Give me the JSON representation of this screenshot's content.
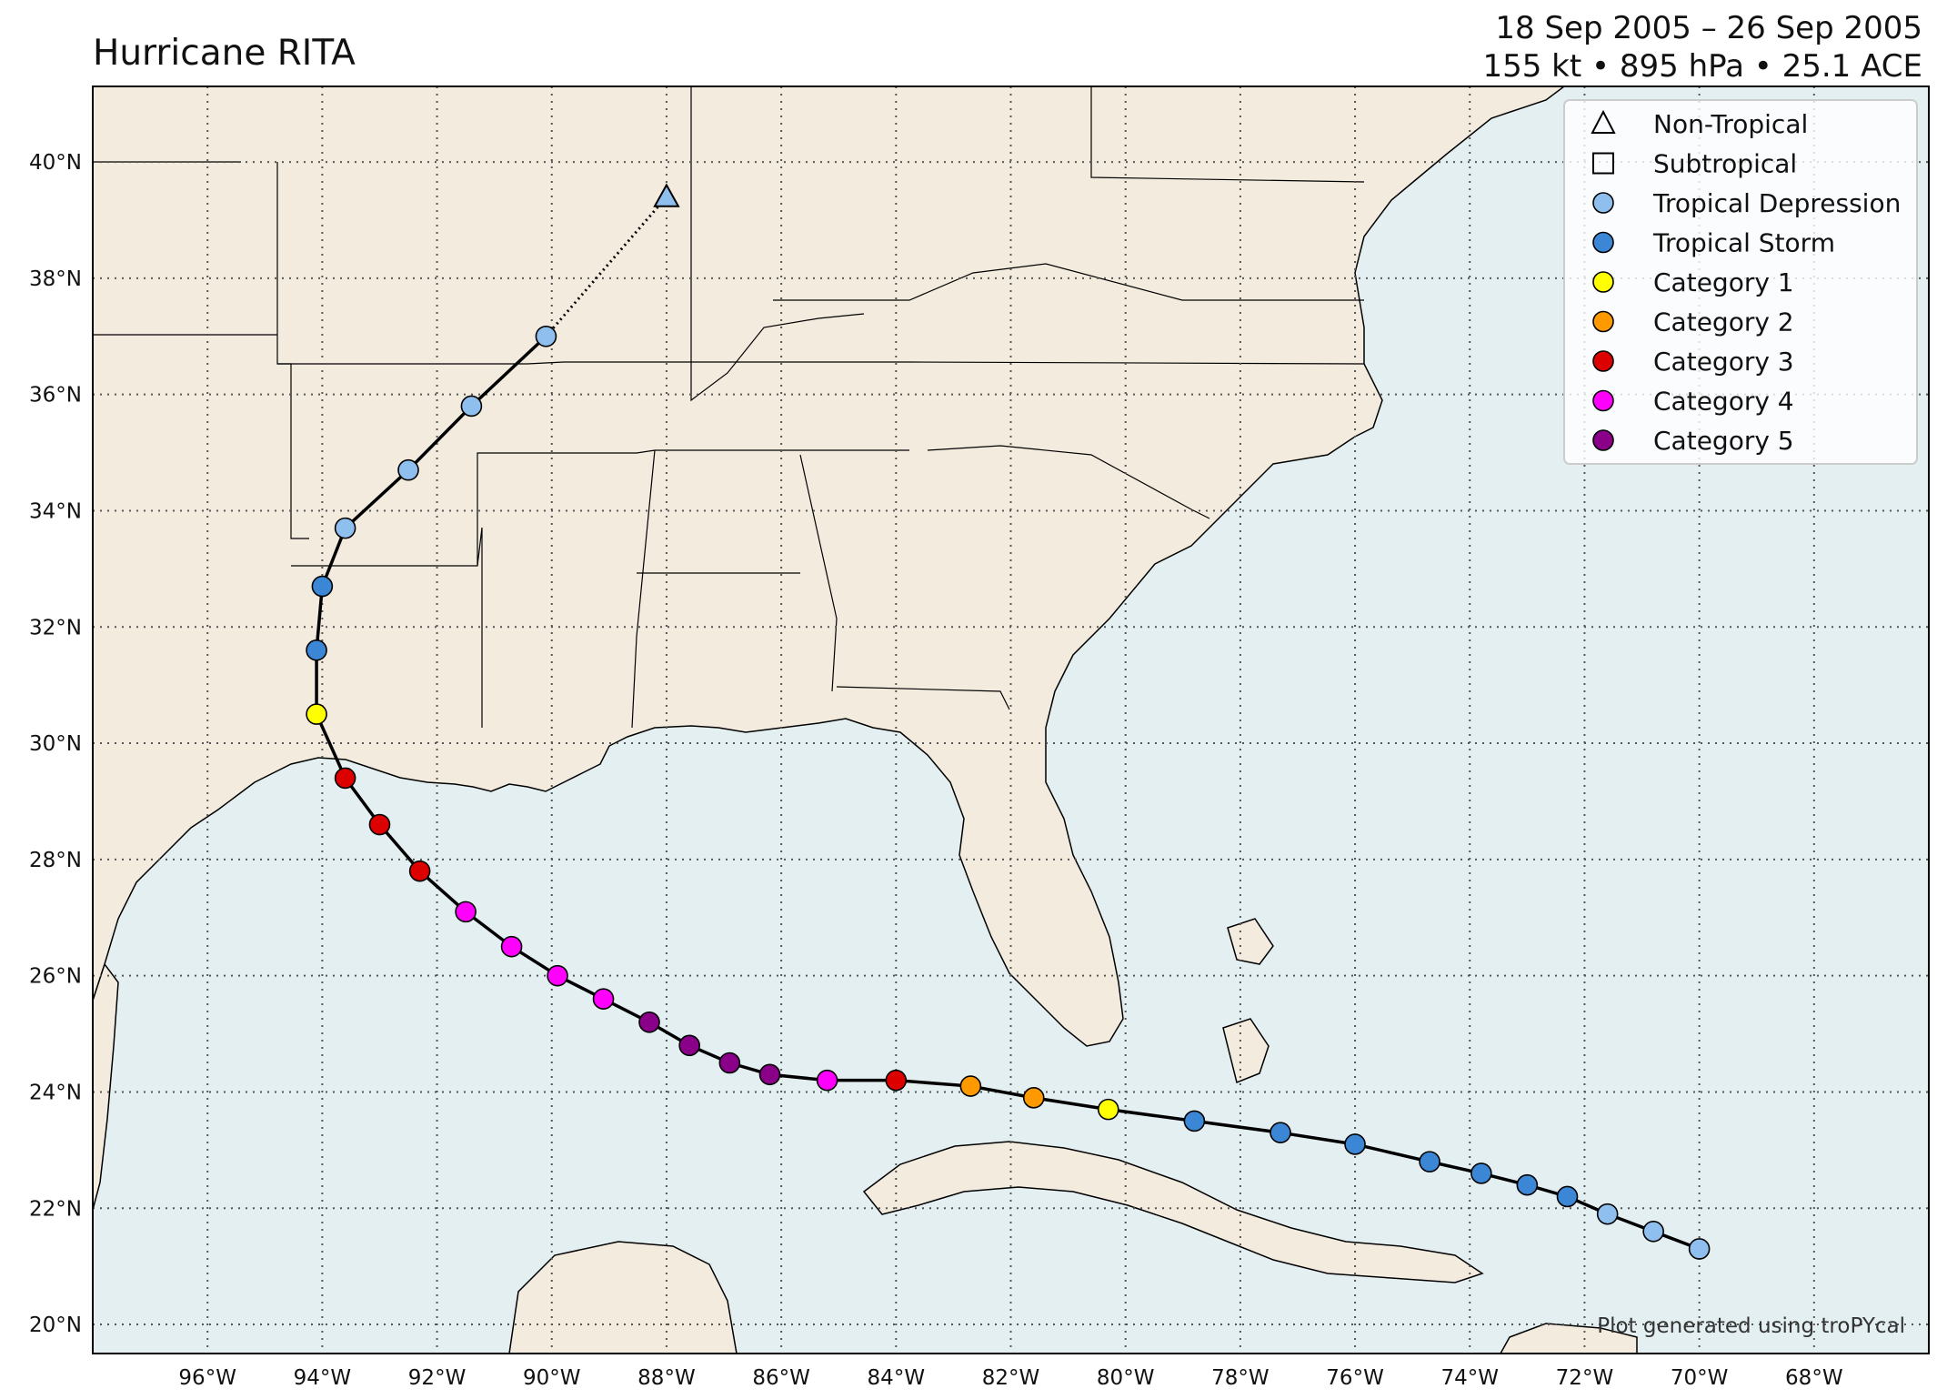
{
  "title": {
    "left": "Hurricane RITA",
    "date_range": "18 Sep 2005 – 26 Sep 2005",
    "stats": "155 kt • 895 hPa • 25.1 ACE"
  },
  "credit": "Plot generated using troPYcal",
  "map": {
    "lon_range": [
      -98,
      -66
    ],
    "lat_range": [
      19.5,
      41.3
    ],
    "lon_ticks": [
      -96,
      -94,
      -92,
      -90,
      -88,
      -86,
      -84,
      -82,
      -80,
      -78,
      -76,
      -74,
      -72,
      -70,
      -68
    ],
    "lon_tick_labels": [
      "96°W",
      "94°W",
      "92°W",
      "90°W",
      "88°W",
      "86°W",
      "84°W",
      "82°W",
      "80°W",
      "78°W",
      "76°W",
      "74°W",
      "72°W",
      "70°W",
      "68°W"
    ],
    "lat_ticks": [
      20,
      22,
      24,
      26,
      28,
      30,
      32,
      34,
      36,
      38,
      40
    ],
    "lat_tick_labels": [
      "20°N",
      "22°N",
      "24°N",
      "26°N",
      "28°N",
      "30°N",
      "32°N",
      "34°N",
      "36°N",
      "38°N",
      "40°N"
    ],
    "colors": {
      "land": "#f3ebde",
      "ocean": "#e4eff2",
      "border": "#000000",
      "grid": "#555555",
      "track": "#000000"
    }
  },
  "legend": {
    "placement": "top-right",
    "items": [
      {
        "label": "Non-Tropical",
        "shape": "triangle",
        "color": "none"
      },
      {
        "label": "Subtropical",
        "shape": "square",
        "color": "none"
      },
      {
        "label": "Tropical Depression",
        "shape": "circle",
        "color": "#8fbfee"
      },
      {
        "label": "Tropical Storm",
        "shape": "circle",
        "color": "#3b87d6"
      },
      {
        "label": "Category 1",
        "shape": "circle",
        "color": "#ffff00"
      },
      {
        "label": "Category 2",
        "shape": "circle",
        "color": "#ff9900"
      },
      {
        "label": "Category 3",
        "shape": "circle",
        "color": "#dd0000"
      },
      {
        "label": "Category 4",
        "shape": "circle",
        "color": "#ff00fc"
      },
      {
        "label": "Category 5",
        "shape": "circle",
        "color": "#8b0088"
      }
    ]
  },
  "track": [
    {
      "lon": -70.0,
      "lat": 21.3,
      "cat": "Tropical Depression"
    },
    {
      "lon": -70.8,
      "lat": 21.6,
      "cat": "Tropical Depression"
    },
    {
      "lon": -71.6,
      "lat": 21.9,
      "cat": "Tropical Depression"
    },
    {
      "lon": -72.3,
      "lat": 22.2,
      "cat": "Tropical Storm"
    },
    {
      "lon": -73.0,
      "lat": 22.4,
      "cat": "Tropical Storm"
    },
    {
      "lon": -73.8,
      "lat": 22.6,
      "cat": "Tropical Storm"
    },
    {
      "lon": -74.7,
      "lat": 22.8,
      "cat": "Tropical Storm"
    },
    {
      "lon": -76.0,
      "lat": 23.1,
      "cat": "Tropical Storm"
    },
    {
      "lon": -77.3,
      "lat": 23.3,
      "cat": "Tropical Storm"
    },
    {
      "lon": -78.8,
      "lat": 23.5,
      "cat": "Tropical Storm"
    },
    {
      "lon": -80.3,
      "lat": 23.7,
      "cat": "Category 1"
    },
    {
      "lon": -81.6,
      "lat": 23.9,
      "cat": "Category 2"
    },
    {
      "lon": -82.7,
      "lat": 24.1,
      "cat": "Category 2"
    },
    {
      "lon": -84.0,
      "lat": 24.2,
      "cat": "Category 3"
    },
    {
      "lon": -85.2,
      "lat": 24.2,
      "cat": "Category 4"
    },
    {
      "lon": -86.2,
      "lat": 24.3,
      "cat": "Category 5"
    },
    {
      "lon": -86.9,
      "lat": 24.5,
      "cat": "Category 5"
    },
    {
      "lon": -87.6,
      "lat": 24.8,
      "cat": "Category 5"
    },
    {
      "lon": -88.3,
      "lat": 25.2,
      "cat": "Category 5"
    },
    {
      "lon": -89.1,
      "lat": 25.6,
      "cat": "Category 4"
    },
    {
      "lon": -89.9,
      "lat": 26.0,
      "cat": "Category 4"
    },
    {
      "lon": -90.7,
      "lat": 26.5,
      "cat": "Category 4"
    },
    {
      "lon": -91.5,
      "lat": 27.1,
      "cat": "Category 4"
    },
    {
      "lon": -92.3,
      "lat": 27.8,
      "cat": "Category 3"
    },
    {
      "lon": -93.0,
      "lat": 28.6,
      "cat": "Category 3"
    },
    {
      "lon": -93.6,
      "lat": 29.4,
      "cat": "Category 3"
    },
    {
      "lon": -94.1,
      "lat": 30.5,
      "cat": "Category 1"
    },
    {
      "lon": -94.1,
      "lat": 31.6,
      "cat": "Tropical Storm"
    },
    {
      "lon": -94.0,
      "lat": 32.7,
      "cat": "Tropical Storm"
    },
    {
      "lon": -93.6,
      "lat": 33.7,
      "cat": "Tropical Depression"
    },
    {
      "lon": -92.5,
      "lat": 34.7,
      "cat": "Tropical Depression"
    },
    {
      "lon": -91.4,
      "lat": 35.8,
      "cat": "Tropical Depression"
    },
    {
      "lon": -90.1,
      "lat": 37.0,
      "cat": "Tropical Depression"
    },
    {
      "lon": -88.0,
      "lat": 39.4,
      "cat": "Non-Tropical",
      "symbol": "triangle",
      "color": "#8fbfee"
    }
  ]
}
